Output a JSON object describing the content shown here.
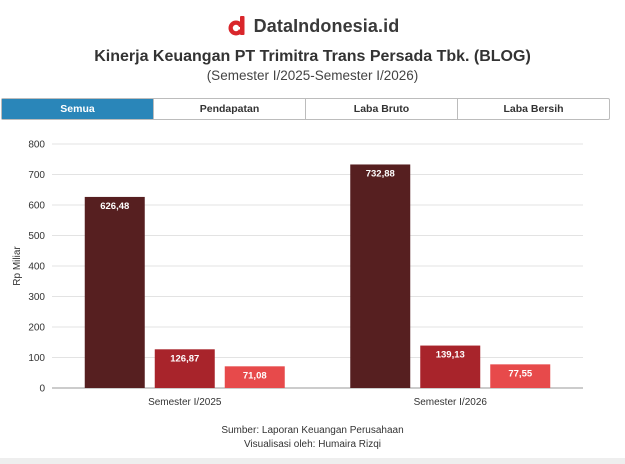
{
  "header": {
    "brand": "DataIndonesia.id",
    "logo_icon": "datain-d-icon",
    "brand_color": "#d9262b"
  },
  "title": "Kinerja Keuangan PT Trimitra Trans Persada Tbk. (BLOG)",
  "subtitle": "(Semester I/2025-Semester I/2026)",
  "tabs": [
    {
      "label": "Semua",
      "active": true
    },
    {
      "label": "Pendapatan",
      "active": false
    },
    {
      "label": "Laba Bruto",
      "active": false
    },
    {
      "label": "Laba Bersih",
      "active": false
    }
  ],
  "chart_data": {
    "type": "bar",
    "categories": [
      "Semester I/2025",
      "Semester I/2026"
    ],
    "series": [
      {
        "values": [
          626.48,
          732.88
        ],
        "labels": [
          "626,48",
          "732,88"
        ],
        "color": "#561f20"
      },
      {
        "values": [
          126.87,
          139.13
        ],
        "labels": [
          "126,87",
          "139,13"
        ],
        "color": "#a8242b"
      },
      {
        "values": [
          71.08,
          77.55
        ],
        "labels": [
          "71,08",
          "77,55"
        ],
        "color": "#e74a4b"
      }
    ],
    "ylabel": "Rp Miliar",
    "ylim": [
      0,
      800
    ],
    "yticks": [
      "0",
      "100",
      "200",
      "300",
      "400",
      "500",
      "600",
      "700",
      "800"
    ],
    "grid": true,
    "legend": "none"
  },
  "footer": {
    "source": "Sumber: Laporan Keuangan Perusahaan",
    "credit": "Visualisasi oleh: Humaira Rizqi"
  }
}
